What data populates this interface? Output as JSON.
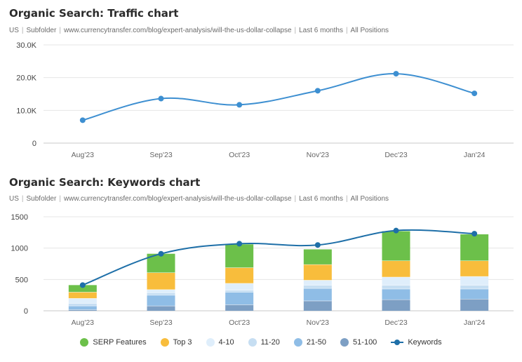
{
  "traffic": {
    "title": "Organic Search: Traffic chart",
    "subtitle": [
      "US",
      "Subfolder",
      "www.currencytransfer.com/blog/expert-analysis/will-the-us-dollar-collapse",
      "Last 6 months",
      "All Positions"
    ]
  },
  "keywords": {
    "title": "Organic Search: Keywords chart",
    "subtitle": [
      "US",
      "Subfolder",
      "www.currencytransfer.com/blog/expert-analysis/will-the-us-dollar-collapse",
      "Last 6 months",
      "All Positions"
    ]
  },
  "colors": {
    "traffic_line": "#3d8fd1",
    "serp": "#6cc04a",
    "top3": "#f8bd3c",
    "p4_10": "#dfeefb",
    "p11_20": "#c6def2",
    "p21_50": "#8fbde6",
    "p51_100": "#7d9fc4",
    "keywords_line": "#1e6fa8"
  },
  "chart_data": [
    {
      "type": "line",
      "categories": [
        "Aug'23",
        "Sep'23",
        "Oct'23",
        "Nov'23",
        "Dec'23",
        "Jan'24"
      ],
      "series": [
        {
          "values": [
            7000,
            13600,
            11700,
            16000,
            21200,
            15200
          ]
        }
      ],
      "ylim": [
        0,
        30000
      ],
      "yticks": [
        "0",
        "10.0K",
        "20.0K",
        "30.0K"
      ],
      "ytick_values": [
        0,
        10000,
        20000,
        30000
      ],
      "grid": true
    },
    {
      "type": "bar",
      "stacked": true,
      "categories": [
        "Aug'23",
        "Sep'23",
        "Oct'23",
        "Nov'23",
        "Dec'23",
        "Jan'24"
      ],
      "series": [
        {
          "name": "51-100",
          "values": [
            20,
            80,
            100,
            160,
            180,
            190
          ]
        },
        {
          "name": "21-50",
          "values": [
            60,
            170,
            200,
            200,
            170,
            160
          ]
        },
        {
          "name": "11-20",
          "values": [
            40,
            40,
            30,
            50,
            60,
            60
          ]
        },
        {
          "name": "4-10",
          "values": [
            80,
            50,
            110,
            80,
            130,
            140
          ]
        },
        {
          "name": "Top 3",
          "values": [
            100,
            270,
            250,
            250,
            260,
            250
          ]
        },
        {
          "name": "SERP Features",
          "values": [
            110,
            300,
            370,
            240,
            470,
            420
          ]
        }
      ],
      "line_series": {
        "name": "Keywords",
        "values": [
          410,
          910,
          1070,
          1050,
          1280,
          1230
        ]
      },
      "ylim": [
        0,
        1500
      ],
      "yticks": [
        "0",
        "500",
        "1000",
        "1500"
      ],
      "ytick_values": [
        0,
        500,
        1000,
        1500
      ],
      "legend": [
        "SERP Features",
        "Top 3",
        "4-10",
        "11-20",
        "21-50",
        "51-100",
        "Keywords"
      ],
      "legend_position": "bottom",
      "grid": true
    }
  ]
}
